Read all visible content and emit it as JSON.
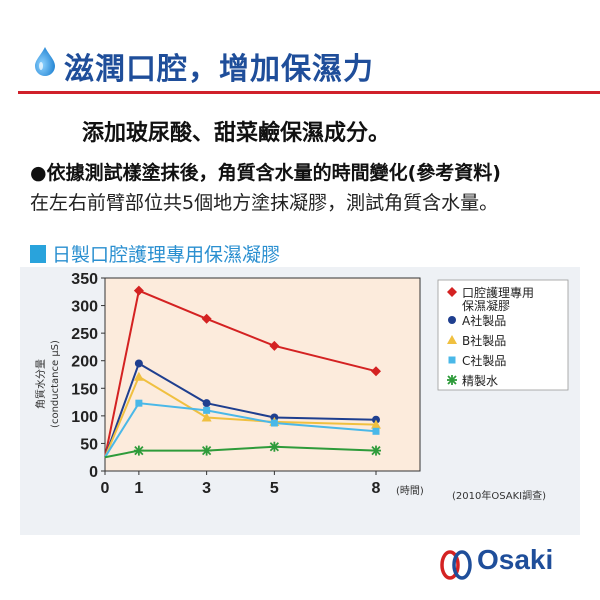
{
  "header": {
    "title": "滋潤口腔，增加保濕力"
  },
  "subtitle": "添加玻尿酸、甜菜鹼保濕成分。",
  "paragraph1": "●依據測試樣塗抹後，角質含水量的時間變化(參考資料)",
  "paragraph2": "在左右前臂部位共5個地方塗抹凝膠，測試角質含水量。",
  "section_title": "日製口腔護理專用保濕凝膠",
  "logo": {
    "text": "Osaki"
  },
  "colors": {
    "title": "#1f4e9a",
    "rule": "#d0202a",
    "accent": "#29a3dc"
  },
  "chart_data": {
    "type": "line",
    "x": [
      0,
      1,
      3,
      5,
      8
    ],
    "xticks": [
      "0",
      "1",
      "3",
      "5",
      "8"
    ],
    "xunit": "(時間)",
    "ylabel_line1": "角質水分量",
    "ylabel_line2": "(conductance μS)",
    "ylim": [
      0,
      350
    ],
    "yticks": [
      0,
      50,
      100,
      150,
      200,
      250,
      300,
      350
    ],
    "note": "(2010年OSAKI調查)",
    "grid": false,
    "legend_position": "right",
    "series": [
      {
        "name": "口腔護理專用保濕凝膠",
        "color": "#d42222",
        "marker": "diamond",
        "values": [
          25,
          327,
          276,
          227,
          181
        ]
      },
      {
        "name": "A社製品",
        "color": "#1f3f8f",
        "marker": "circle",
        "values": [
          25,
          195,
          123,
          97,
          93
        ]
      },
      {
        "name": "B社製品",
        "color": "#f0c040",
        "marker": "triangle",
        "values": [
          25,
          171,
          97,
          89,
          84
        ]
      },
      {
        "name": "C社製品",
        "color": "#4ab8e8",
        "marker": "square",
        "values": [
          25,
          123,
          110,
          87,
          72
        ]
      },
      {
        "name": "精製水",
        "color": "#2e9b3a",
        "marker": "asterisk",
        "values": [
          25,
          37,
          37,
          44,
          37
        ]
      }
    ]
  }
}
